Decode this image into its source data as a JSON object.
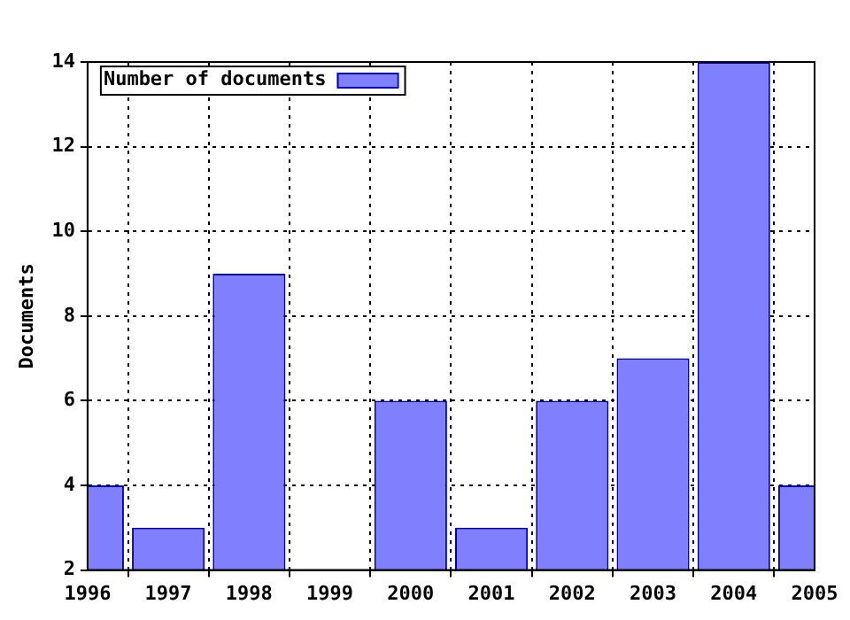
{
  "chart_data": {
    "type": "bar",
    "ylabel": "Documents",
    "x": [
      1996,
      1997,
      1998,
      1999,
      2000,
      2001,
      2002,
      2003,
      2004,
      2005
    ],
    "series": [
      {
        "name": "Number of documents",
        "color": "#8080ff",
        "values": [
          4,
          3,
          9,
          null,
          6,
          3,
          6,
          7,
          14,
          4
        ]
      }
    ],
    "xlim": [
      1996,
      2005
    ],
    "xticks": [
      1996,
      1997,
      1998,
      1999,
      2000,
      2001,
      2002,
      2003,
      2004,
      2005
    ],
    "ylim": [
      2,
      14
    ],
    "yticks": [
      2,
      4,
      6,
      8,
      10,
      12,
      14
    ],
    "grid": true,
    "legend": "top left"
  }
}
